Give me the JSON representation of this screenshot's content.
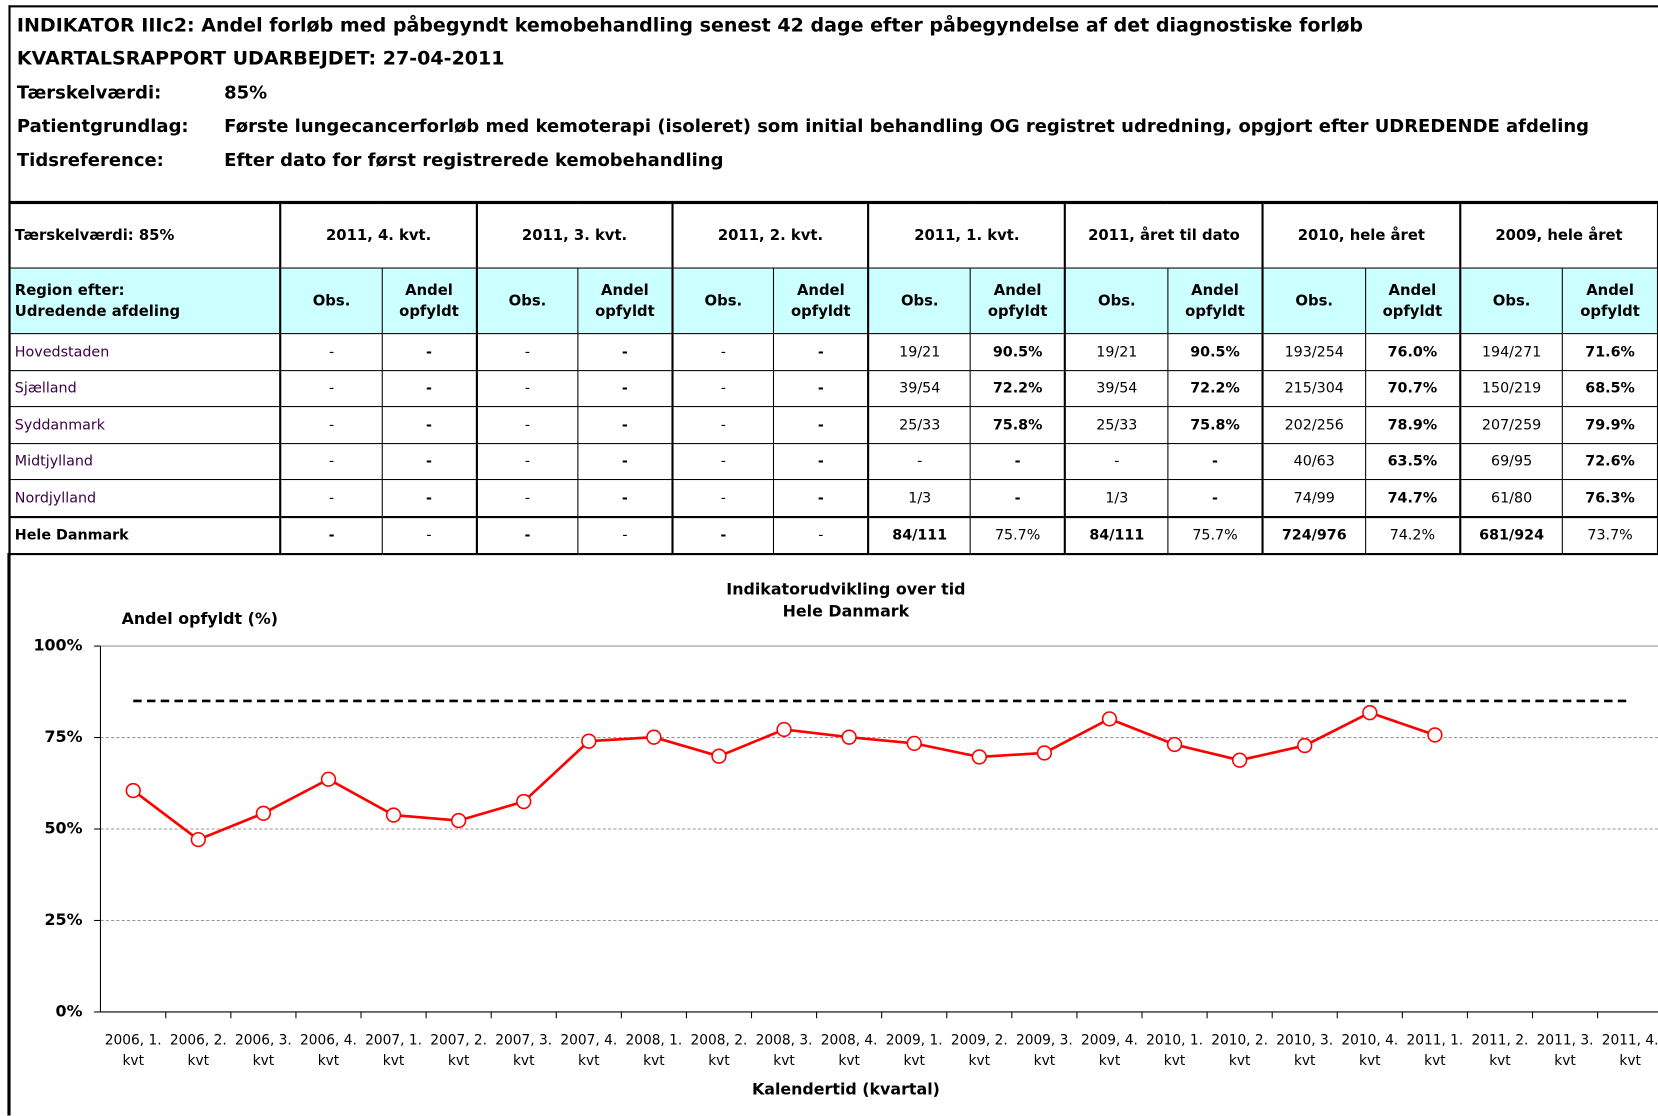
{
  "header": {
    "title": "INDIKATOR IIIc2: Andel forløb med påbegyndt kemobehandling senest 42 dage efter påbegyndelse af det diagnostiske forløb",
    "report": "KVARTALSRAPPORT UDARBEJDET: 27-04-2011",
    "fields": [
      {
        "label": "Tærskelværdi:",
        "value": "85%"
      },
      {
        "label": "Patientgrundlag:",
        "value": "Første lungecancerforløb med kemoterapi (isoleret) som initial behandling OG registret udredning, opgjort efter UDREDENDE afdeling"
      },
      {
        "label": "Tidsreference:",
        "value": "Efter dato for først registrerede kemobehandling"
      }
    ]
  },
  "table": {
    "corner": "Tærskelværdi:  85%",
    "periods": [
      "2011, 4. kvt.",
      "2011, 3. kvt.",
      "2011, 2. kvt.",
      "2011, 1. kvt.",
      "2011, året til dato",
      "2010, hele året",
      "2009, hele året"
    ],
    "region_header": [
      "Region efter:",
      "Udredende afdeling"
    ],
    "obs_label": "Obs.",
    "share_label": "Andel opfyldt",
    "rows": [
      {
        "name": "Hovedstaden",
        "cells": [
          "-",
          "-",
          "-",
          "-",
          "-",
          "-",
          "19/21",
          "90.5%",
          "19/21",
          "90.5%",
          "193/254",
          "76.0%",
          "194/271",
          "71.6%"
        ]
      },
      {
        "name": "Sjælland",
        "cells": [
          "-",
          "-",
          "-",
          "-",
          "-",
          "-",
          "39/54",
          "72.2%",
          "39/54",
          "72.2%",
          "215/304",
          "70.7%",
          "150/219",
          "68.5%"
        ]
      },
      {
        "name": "Syddanmark",
        "cells": [
          "-",
          "-",
          "-",
          "-",
          "-",
          "-",
          "25/33",
          "75.8%",
          "25/33",
          "75.8%",
          "202/256",
          "78.9%",
          "207/259",
          "79.9%"
        ]
      },
      {
        "name": "Midtjylland",
        "cells": [
          "-",
          "-",
          "-",
          "-",
          "-",
          "-",
          "-",
          "-",
          "-",
          "-",
          "40/63",
          "63.5%",
          "69/95",
          "72.6%"
        ]
      },
      {
        "name": "Nordjylland",
        "cells": [
          "-",
          "-",
          "-",
          "-",
          "-",
          "-",
          "1/3",
          "-",
          "1/3",
          "-",
          "74/99",
          "74.7%",
          "61/80",
          "76.3%"
        ]
      },
      {
        "name": "Hele Danmark",
        "cells": [
          "-",
          "-",
          "-",
          "-",
          "-",
          "-",
          "84/111",
          "75.7%",
          "84/111",
          "75.7%",
          "724/976",
          "74.2%",
          "681/924",
          "73.7%"
        ]
      }
    ]
  },
  "chart_data": {
    "type": "line",
    "title": [
      "Indikatorudvikling over tid",
      "Hele Danmark"
    ],
    "ylabel": "Andel opfyldt (%)",
    "xlabel": "Kalendertid (kvartal)",
    "categories": [
      "2006, 1. kvt",
      "2006, 2. kvt",
      "2006, 3. kvt",
      "2006, 4. kvt",
      "2007, 1. kvt",
      "2007, 2. kvt",
      "2007, 3. kvt",
      "2007, 4. kvt",
      "2008, 1. kvt",
      "2008, 2. kvt",
      "2008, 3. kvt",
      "2008, 4. kvt",
      "2009, 1. kvt",
      "2009, 2. kvt",
      "2009, 3. kvt",
      "2009, 4. kvt",
      "2010, 1. kvt",
      "2010, 2. kvt",
      "2010, 3. kvt",
      "2010, 4. kvt",
      "2011, 1. kvt",
      "2011, 2. kvt",
      "2011, 3. kvt",
      "2011, 4. kvt"
    ],
    "values": [
      60.5,
      47.1,
      54.3,
      63.6,
      53.8,
      52.3,
      57.5,
      74.0,
      75.1,
      69.9,
      77.2,
      75.1,
      73.4,
      69.7,
      70.8,
      80.1,
      73.1,
      68.8,
      72.8,
      81.8,
      75.7,
      null,
      null,
      null
    ],
    "color": "#ff0000",
    "threshold": 85,
    "ylim": [
      0,
      100
    ],
    "yticks": [
      {
        "value": 0,
        "label": "0%"
      },
      {
        "value": 25,
        "label": "25%"
      },
      {
        "value": 50,
        "label": "50%"
      },
      {
        "value": 75,
        "label": "75%"
      },
      {
        "value": 100,
        "label": "100%"
      }
    ],
    "grid": true
  }
}
